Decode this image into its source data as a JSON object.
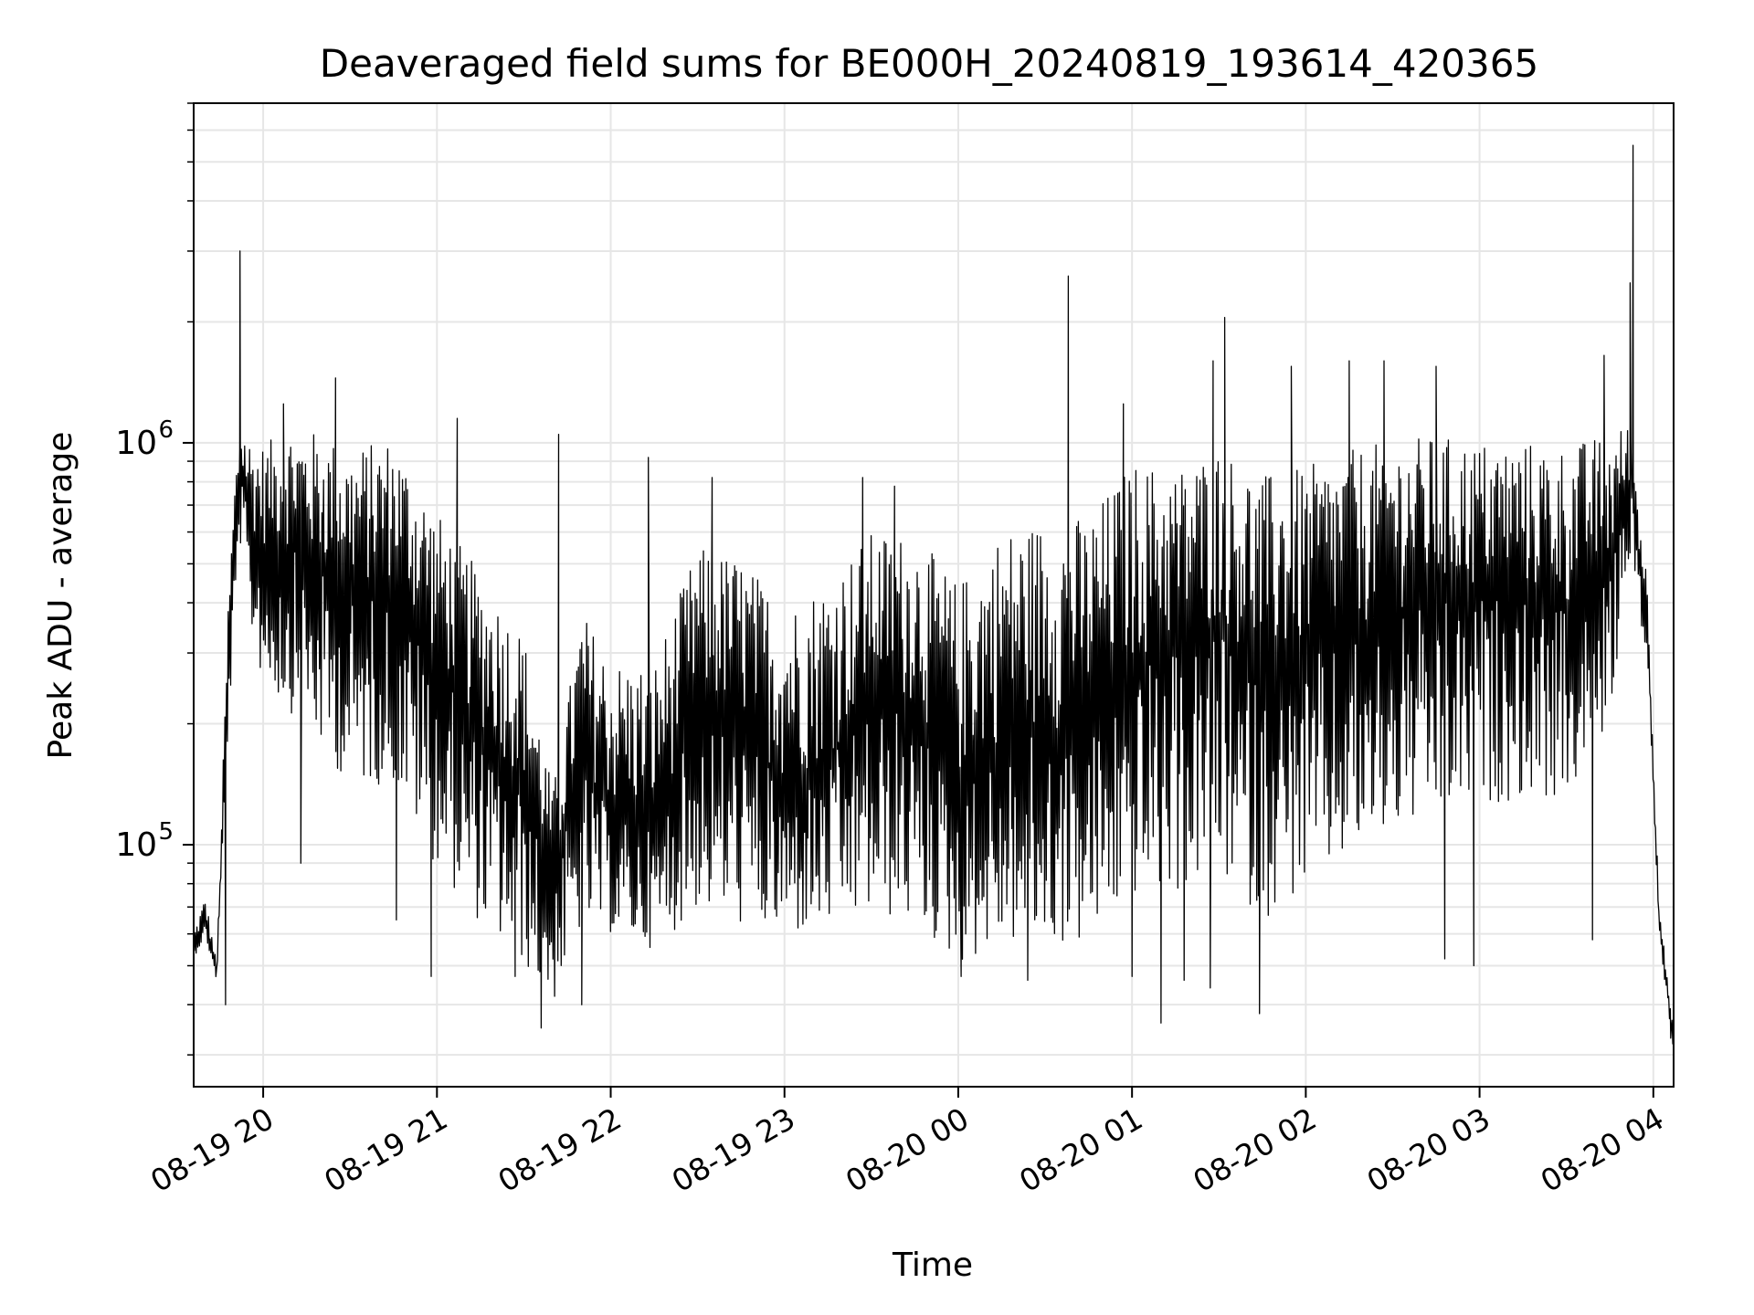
{
  "chart_data": {
    "type": "line",
    "title": "Deaveraged field sums for BE000H_20240819_193614_420365",
    "xlabel": "Time",
    "ylabel": "Peak ADU - average",
    "x_ticks": [
      "08-19 20",
      "08-19 21",
      "08-19 22",
      "08-19 23",
      "08-20 00",
      "08-20 01",
      "08-20 02",
      "08-20 03",
      "08-20 04"
    ],
    "x_tick_times": [
      "2024-08-19T20:00",
      "2024-08-19T21:00",
      "2024-08-19T22:00",
      "2024-08-19T23:00",
      "2024-08-20T00:00",
      "2024-08-20T01:00",
      "2024-08-20T02:00",
      "2024-08-20T03:00",
      "2024-08-20T04:00"
    ],
    "xlim": [
      "2024-08-19T19:36",
      "2024-08-20T04:07"
    ],
    "y_scale": "log",
    "y_ticks": [
      {
        "base": "10",
        "exp": "5",
        "value": 100000
      },
      {
        "base": "10",
        "exp": "6",
        "value": 1000000
      }
    ],
    "ylim": [
      25000,
      7000000
    ],
    "grid": true,
    "line_color": "#000000",
    "series": [
      {
        "x": [
          "2024-08-19T19:36",
          "2024-08-19T19:40",
          "2024-08-19T19:44",
          "2024-08-19T19:48",
          "2024-08-19T19:50",
          "2024-08-19T19:52",
          "2024-08-19T19:56",
          "2024-08-19T20:00",
          "2024-08-19T20:10",
          "2024-08-19T20:20",
          "2024-08-19T20:30",
          "2024-08-19T20:45",
          "2024-08-19T21:00",
          "2024-08-19T21:15",
          "2024-08-19T21:30",
          "2024-08-19T21:40",
          "2024-08-19T21:50",
          "2024-08-19T22:00",
          "2024-08-19T22:15",
          "2024-08-19T22:30",
          "2024-08-19T22:45",
          "2024-08-19T23:00",
          "2024-08-19T23:15",
          "2024-08-19T23:30",
          "2024-08-19T23:45",
          "2024-08-20T00:00",
          "2024-08-20T00:15",
          "2024-08-20T00:30",
          "2024-08-20T00:45",
          "2024-08-20T01:00",
          "2024-08-20T01:15",
          "2024-08-20T01:30",
          "2024-08-20T01:45",
          "2024-08-20T02:00",
          "2024-08-20T02:15",
          "2024-08-20T02:30",
          "2024-08-20T02:45",
          "2024-08-20T03:00",
          "2024-08-20T03:15",
          "2024-08-20T03:30",
          "2024-08-20T03:45",
          "2024-08-20T03:52",
          "2024-08-20T03:58",
          "2024-08-20T04:02",
          "2024-08-20T04:07"
        ],
        "base": [
          55000,
          65000,
          48000,
          280000,
          500000,
          850000,
          600000,
          550000,
          550000,
          480000,
          420000,
          450000,
          280000,
          190000,
          140000,
          80000,
          160000,
          120000,
          110000,
          220000,
          200000,
          140000,
          160000,
          230000,
          220000,
          140000,
          180000,
          190000,
          200000,
          280000,
          300000,
          350000,
          260000,
          290000,
          330000,
          380000,
          400000,
          420000,
          420000,
          380000,
          480000,
          800000,
          350000,
          65000,
          32000
        ],
        "spread_low": [
          1.05,
          1.1,
          1.05,
          1.4,
          1.6,
          1.5,
          1.8,
          2.2,
          2.6,
          2.8,
          3.0,
          3.2,
          3.2,
          3.0,
          2.8,
          2.0,
          2.6,
          2.0,
          2.0,
          3.2,
          3.2,
          2.4,
          2.6,
          3.5,
          3.5,
          2.8,
          3.2,
          3.4,
          3.6,
          3.8,
          4.0,
          4.2,
          4.0,
          3.8,
          3.6,
          3.6,
          3.5,
          3.4,
          3.2,
          3.0,
          2.4,
          1.5,
          1.3,
          1.1,
          1.05
        ],
        "spread_high": [
          1.1,
          1.15,
          1.05,
          1.5,
          1.6,
          1.35,
          1.7,
          1.8,
          2.0,
          2.2,
          2.3,
          2.3,
          2.4,
          2.5,
          2.4,
          1.7,
          2.4,
          2.4,
          2.6,
          2.5,
          2.6,
          2.8,
          2.9,
          2.6,
          2.7,
          3.2,
          3.4,
          3.4,
          3.3,
          3.2,
          2.9,
          2.8,
          3.2,
          3.0,
          2.9,
          2.7,
          2.6,
          2.4,
          2.4,
          2.6,
          2.2,
          1.4,
          1.3,
          1.1,
          1.05
        ],
        "peaks": [
          {
            "x": "2024-08-19T19:52",
            "y": 3000000
          },
          {
            "x": "2024-08-19T20:07",
            "y": 1250000
          },
          {
            "x": "2024-08-19T20:25",
            "y": 1450000
          },
          {
            "x": "2024-08-19T21:07",
            "y": 1150000
          },
          {
            "x": "2024-08-19T21:42",
            "y": 1050000
          },
          {
            "x": "2024-08-19T22:13",
            "y": 920000
          },
          {
            "x": "2024-08-19T22:35",
            "y": 820000
          },
          {
            "x": "2024-08-19T23:27",
            "y": 820000
          },
          {
            "x": "2024-08-19T23:38",
            "y": 780000
          },
          {
            "x": "2024-08-20T00:38",
            "y": 2600000
          },
          {
            "x": "2024-08-20T00:57",
            "y": 1250000
          },
          {
            "x": "2024-08-20T01:28",
            "y": 1600000
          },
          {
            "x": "2024-08-20T01:32",
            "y": 2050000
          },
          {
            "x": "2024-08-20T01:55",
            "y": 1550000
          },
          {
            "x": "2024-08-20T02:15",
            "y": 1600000
          },
          {
            "x": "2024-08-20T02:27",
            "y": 1600000
          },
          {
            "x": "2024-08-20T02:45",
            "y": 1550000
          },
          {
            "x": "2024-08-20T03:43",
            "y": 1650000
          },
          {
            "x": "2024-08-20T03:53",
            "y": 5500000
          },
          {
            "x": "2024-08-20T03:52",
            "y": 2500000
          }
        ],
        "dips": [
          {
            "x": "2024-08-19T19:47",
            "y": 40000
          },
          {
            "x": "2024-08-19T20:13",
            "y": 90000
          },
          {
            "x": "2024-08-19T20:46",
            "y": 65000
          },
          {
            "x": "2024-08-19T20:58",
            "y": 47000
          },
          {
            "x": "2024-08-19T21:27",
            "y": 47000
          },
          {
            "x": "2024-08-19T21:36",
            "y": 35000
          },
          {
            "x": "2024-08-19T21:50",
            "y": 40000
          },
          {
            "x": "2024-08-20T00:01",
            "y": 47000
          },
          {
            "x": "2024-08-20T00:24",
            "y": 46000
          },
          {
            "x": "2024-08-20T01:00",
            "y": 47000
          },
          {
            "x": "2024-08-20T01:10",
            "y": 36000
          },
          {
            "x": "2024-08-20T01:18",
            "y": 46000
          },
          {
            "x": "2024-08-20T01:27",
            "y": 44000
          },
          {
            "x": "2024-08-20T01:44",
            "y": 38000
          },
          {
            "x": "2024-08-20T02:48",
            "y": 52000
          },
          {
            "x": "2024-08-20T02:58",
            "y": 50000
          },
          {
            "x": "2024-08-20T03:39",
            "y": 58000
          },
          {
            "x": "2024-08-20T04:06",
            "y": 33000
          }
        ]
      }
    ]
  }
}
